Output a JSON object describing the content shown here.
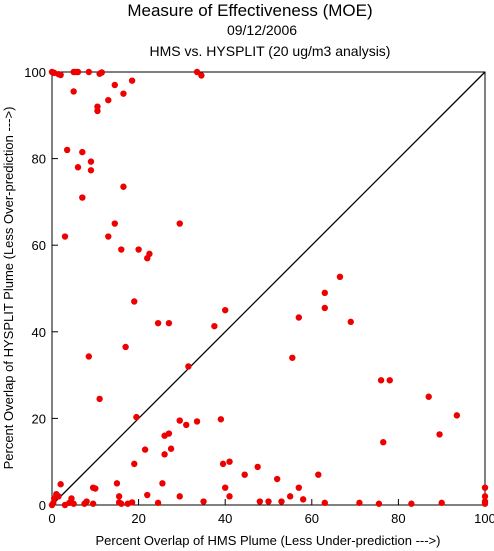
{
  "chart_data": {
    "type": "scatter",
    "title": "Measure of Effectiveness (MOE)",
    "subtitle_date": "09/12/2006",
    "subtitle": "HMS vs. HYSPLIT  (20 ug/m3 analysis)",
    "xlabel": "Percent Overlap of HMS Plume (Less Under-prediction --->)",
    "ylabel": "Percent Overlap of HYSPLIT Plume (Less Over-prediction --->)",
    "xlim": [
      0,
      100
    ],
    "ylim": [
      0,
      100
    ],
    "x_ticks": [
      "0",
      "20",
      "40",
      "60",
      "80",
      "100"
    ],
    "y_ticks": [
      "0",
      "20",
      "40",
      "60",
      "80",
      "100"
    ],
    "grid": false,
    "diagonal_line": true,
    "marker_color": "#ee0000",
    "points": [
      [
        0,
        100
      ],
      [
        0.5,
        99.8
      ],
      [
        1.5,
        99.5
      ],
      [
        5,
        100
      ],
      [
        5.5,
        100
      ],
      [
        6,
        100
      ],
      [
        8.5,
        100
      ],
      [
        11,
        99.6
      ],
      [
        11.5,
        99.9
      ],
      [
        33.5,
        100
      ],
      [
        34.5,
        99.2
      ],
      [
        5,
        95.5
      ],
      [
        13,
        93.5
      ],
      [
        14.5,
        97
      ],
      [
        16.5,
        95
      ],
      [
        18.5,
        98
      ],
      [
        10.5,
        92
      ],
      [
        10.5,
        91
      ],
      [
        2,
        99.3
      ],
      [
        3.5,
        82
      ],
      [
        7,
        81.5
      ],
      [
        9,
        79.3
      ],
      [
        9,
        77.3
      ],
      [
        6,
        78
      ],
      [
        7,
        71
      ],
      [
        16.5,
        73.5
      ],
      [
        3,
        62
      ],
      [
        13,
        62
      ],
      [
        14.5,
        65
      ],
      [
        16,
        59
      ],
      [
        20,
        59
      ],
      [
        22,
        57
      ],
      [
        22.5,
        58
      ],
      [
        29.5,
        65
      ],
      [
        19,
        47
      ],
      [
        8.5,
        34.3
      ],
      [
        24.5,
        42
      ],
      [
        27,
        42
      ],
      [
        37.5,
        41.3
      ],
      [
        40,
        45
      ],
      [
        17,
        36.5
      ],
      [
        11,
        24.5
      ],
      [
        19.5,
        20.3
      ],
      [
        31.5,
        32
      ],
      [
        29.5,
        19.5
      ],
      [
        31,
        18.5
      ],
      [
        33.5,
        19.3
      ],
      [
        39,
        19.8
      ],
      [
        26,
        16
      ],
      [
        27,
        16.5
      ],
      [
        26,
        11.7
      ],
      [
        27.5,
        13
      ],
      [
        21.5,
        12.8
      ],
      [
        19,
        9.5
      ],
      [
        55.5,
        34
      ],
      [
        57,
        43.3
      ],
      [
        63,
        49
      ],
      [
        63,
        45.5
      ],
      [
        66.5,
        52.7
      ],
      [
        69,
        42.3
      ],
      [
        76,
        28.8
      ],
      [
        78,
        28.8
      ],
      [
        87,
        25
      ],
      [
        93.5,
        20.7
      ],
      [
        89.5,
        16.3
      ],
      [
        76.5,
        14.5
      ],
      [
        0,
        0
      ],
      [
        0.3,
        0.5
      ],
      [
        0.5,
        1.5
      ],
      [
        1,
        2.5
      ],
      [
        2,
        4.8
      ],
      [
        1.5,
        2
      ],
      [
        3,
        0
      ],
      [
        4,
        0.5
      ],
      [
        4.5,
        1.5
      ],
      [
        5,
        0.3
      ],
      [
        7.5,
        0.3
      ],
      [
        8,
        0.8
      ],
      [
        9.5,
        0.3
      ],
      [
        9.5,
        4
      ],
      [
        10,
        3.8
      ],
      [
        15,
        5
      ],
      [
        15.5,
        2
      ],
      [
        15.5,
        0.6
      ],
      [
        16,
        0.3
      ],
      [
        17.5,
        0.3
      ],
      [
        18.5,
        0.6
      ],
      [
        22,
        2.3
      ],
      [
        24.5,
        0.5
      ],
      [
        25.5,
        5
      ],
      [
        29.5,
        2
      ],
      [
        35,
        0.8
      ],
      [
        39.5,
        9.5
      ],
      [
        40,
        4
      ],
      [
        41,
        10
      ],
      [
        41,
        2
      ],
      [
        44.5,
        7
      ],
      [
        47.5,
        8.8
      ],
      [
        48,
        0.8
      ],
      [
        50,
        0.8
      ],
      [
        52,
        6
      ],
      [
        53,
        0.8
      ],
      [
        55,
        2
      ],
      [
        57,
        4
      ],
      [
        58,
        1.3
      ],
      [
        61.5,
        7
      ],
      [
        63,
        0.5
      ],
      [
        71,
        0.5
      ],
      [
        75.5,
        0.3
      ],
      [
        83,
        0.3
      ],
      [
        90,
        0.5
      ],
      [
        100,
        4
      ],
      [
        100,
        2
      ],
      [
        100,
        0.8
      ],
      [
        100,
        0.3
      ]
    ]
  }
}
